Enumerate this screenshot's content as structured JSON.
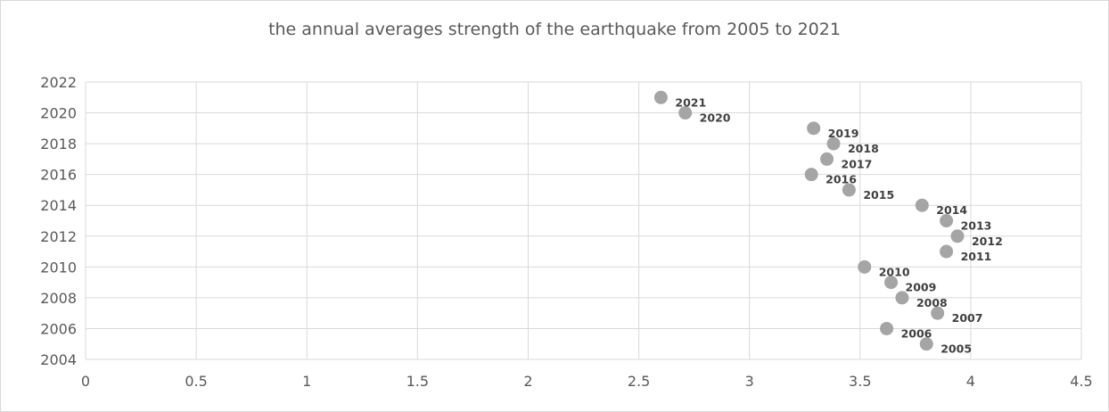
{
  "chart_data": {
    "type": "scatter",
    "title": "the annual averages strength of the earthquake from 2005 to 2021",
    "xlabel": "",
    "ylabel": "",
    "xlim": [
      0,
      4.5
    ],
    "ylim": [
      2004,
      2022
    ],
    "x_ticks": [
      "0",
      "0.5",
      "1",
      "1.5",
      "2",
      "2.5",
      "3",
      "3.5",
      "4",
      "4.5"
    ],
    "y_ticks": [
      "2004",
      "2006",
      "2008",
      "2010",
      "2012",
      "2014",
      "2016",
      "2018",
      "2020",
      "2022"
    ],
    "grid": true,
    "legend": "none",
    "marker_color": "#a5a5a5",
    "points": [
      {
        "x": 3.8,
        "y": 2005,
        "label": "2005"
      },
      {
        "x": 3.62,
        "y": 2006,
        "label": "2006"
      },
      {
        "x": 3.85,
        "y": 2007,
        "label": "2007"
      },
      {
        "x": 3.69,
        "y": 2008,
        "label": "2008"
      },
      {
        "x": 3.64,
        "y": 2009,
        "label": "2009"
      },
      {
        "x": 3.52,
        "y": 2010,
        "label": "2010"
      },
      {
        "x": 3.89,
        "y": 2011,
        "label": "2011"
      },
      {
        "x": 3.94,
        "y": 2012,
        "label": "2012"
      },
      {
        "x": 3.89,
        "y": 2013,
        "label": "2013"
      },
      {
        "x": 3.78,
        "y": 2014,
        "label": "2014"
      },
      {
        "x": 3.45,
        "y": 2015,
        "label": "2015"
      },
      {
        "x": 3.28,
        "y": 2016,
        "label": "2016"
      },
      {
        "x": 3.35,
        "y": 2017,
        "label": "2017"
      },
      {
        "x": 3.38,
        "y": 2018,
        "label": "2018"
      },
      {
        "x": 3.29,
        "y": 2019,
        "label": "2019"
      },
      {
        "x": 2.71,
        "y": 2020,
        "label": "2020"
      },
      {
        "x": 2.6,
        "y": 2021,
        "label": "2021"
      }
    ]
  }
}
